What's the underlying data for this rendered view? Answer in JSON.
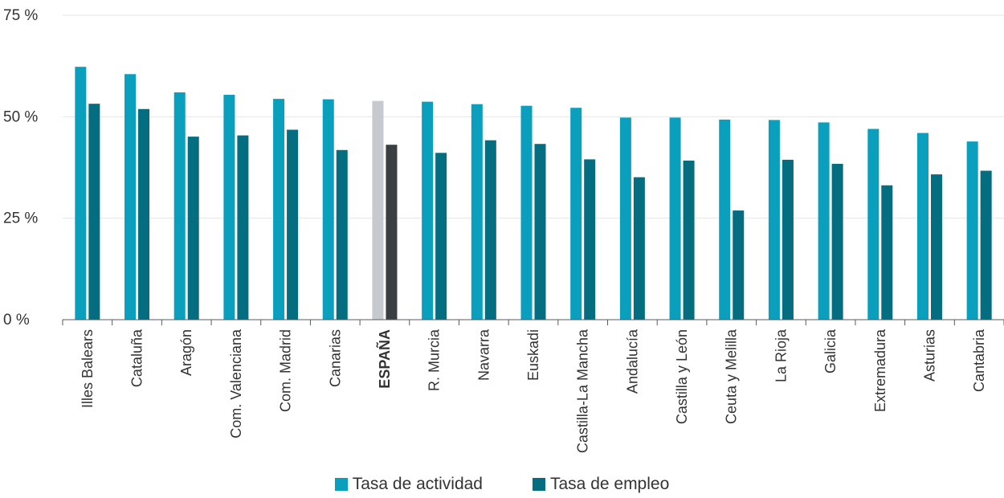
{
  "chart_data": {
    "type": "bar",
    "title": "",
    "xlabel": "",
    "ylabel": "",
    "ylim": [
      0,
      75
    ],
    "yticks": [
      0,
      25,
      50,
      75
    ],
    "ytick_labels": [
      "0 %",
      "25 %",
      "50 %",
      "75 %"
    ],
    "grid": true,
    "legend_position": "bottom-center",
    "categories": [
      "Illes Balears",
      "Cataluña",
      "Aragón",
      "Com. Valenciana",
      "Com. Madrid",
      "Canarias",
      "ESPAÑA",
      "R. Murcia",
      "Navarra",
      "Euskadi",
      "Castilla-La Mancha",
      "Andalucía",
      "Castilla y León",
      "Ceuta y Melilla",
      "La Rioja",
      "Galicia",
      "Extremadura",
      "Asturias",
      "Cantabria"
    ],
    "highlight_category": "ESPAÑA",
    "series": [
      {
        "name": "Tasa de actividad",
        "color": "#0b9fbe",
        "highlight_color": "#c6c9ce",
        "values": [
          62.3,
          60.5,
          56.0,
          55.4,
          54.4,
          54.3,
          53.9,
          53.7,
          53.1,
          52.7,
          52.2,
          49.8,
          49.8,
          49.3,
          49.2,
          48.6,
          47.0,
          46.0,
          43.9
        ]
      },
      {
        "name": "Tasa de empleo",
        "color": "#046e80",
        "highlight_color": "#3c3f42",
        "values": [
          53.2,
          51.9,
          45.1,
          45.4,
          46.8,
          41.8,
          43.1,
          41.1,
          44.2,
          43.3,
          39.5,
          35.1,
          39.2,
          26.9,
          39.4,
          38.4,
          33.1,
          35.8,
          36.7
        ]
      }
    ]
  }
}
